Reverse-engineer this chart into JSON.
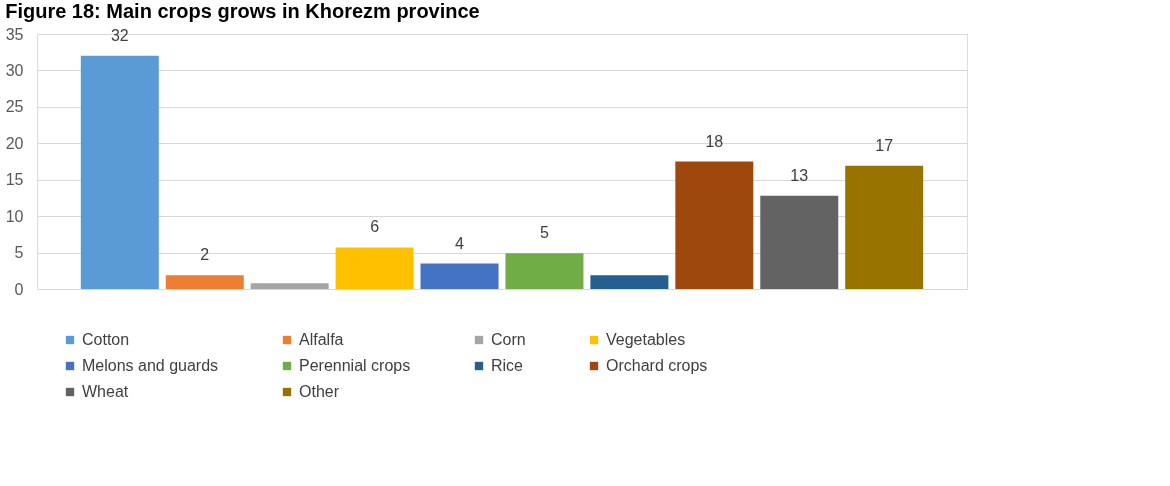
{
  "chart_data": {
    "type": "bar",
    "title": "Figure 18: Main crops grows in Khorezm province",
    "categories": [
      null,
      null,
      null,
      null,
      null,
      null,
      null,
      null,
      null,
      null
    ],
    "series": [
      {
        "name": "Cotton",
        "color": "#5b9bd5",
        "values": [
          32,
          null,
          null,
          null,
          null,
          null,
          null,
          null,
          null,
          null
        ],
        "value_labels": [
          "32",
          null,
          null,
          null,
          null,
          null,
          null,
          null,
          null,
          null
        ]
      },
      {
        "name": "Alfalfa",
        "color": "#ed7d31",
        "values": [
          null,
          1.9,
          null,
          null,
          null,
          null,
          null,
          null,
          null,
          null
        ],
        "value_labels": [
          null,
          "2",
          null,
          null,
          null,
          null,
          null,
          null,
          null,
          null
        ]
      },
      {
        "name": "Corn",
        "color": "#a5a5a5",
        "values": [
          null,
          null,
          0.8,
          null,
          null,
          null,
          null,
          null,
          null,
          null
        ]
      },
      {
        "name": "Vegetables",
        "color": "#ffc000",
        "values": [
          null,
          null,
          null,
          5.7,
          null,
          null,
          null,
          null,
          null,
          null
        ],
        "value_labels": [
          null,
          null,
          null,
          "6",
          null,
          null,
          null,
          null,
          null,
          null
        ]
      },
      {
        "name": "Melons and guards",
        "color": "#4472c4",
        "values": [
          null,
          null,
          null,
          null,
          3.5,
          null,
          null,
          null,
          null,
          null
        ],
        "value_labels": [
          null,
          null,
          null,
          null,
          "4",
          null,
          null,
          null,
          null,
          null
        ]
      },
      {
        "name": "Perennial crops",
        "color": "#70ad47",
        "values": [
          null,
          null,
          null,
          null,
          null,
          4.9,
          null,
          null,
          null,
          null
        ],
        "value_labels": [
          null,
          null,
          null,
          null,
          null,
          "5",
          null,
          null,
          null,
          null
        ]
      },
      {
        "name": "Rice",
        "color": "#255e91",
        "values": [
          null,
          null,
          null,
          null,
          null,
          null,
          1.9,
          null,
          null,
          null
        ]
      },
      {
        "name": "Orchard crops",
        "color": "#9e480e",
        "values": [
          null,
          null,
          null,
          null,
          null,
          null,
          null,
          17.5,
          null,
          null
        ],
        "value_labels": [
          null,
          null,
          null,
          null,
          null,
          null,
          null,
          "18",
          null,
          null
        ]
      },
      {
        "name": "Wheat",
        "color": "#636363",
        "values": [
          null,
          null,
          null,
          null,
          null,
          null,
          null,
          null,
          12.8,
          null
        ],
        "value_labels": [
          null,
          null,
          null,
          null,
          null,
          null,
          null,
          null,
          "13",
          null
        ]
      },
      {
        "name": "Other",
        "color": "#997300",
        "values": [
          null,
          null,
          null,
          null,
          null,
          null,
          null,
          null,
          null,
          16.9
        ],
        "value_labels": [
          null,
          null,
          null,
          null,
          null,
          null,
          null,
          null,
          null,
          "17"
        ]
      }
    ],
    "ylim": [
      0,
      35
    ],
    "yticks": [
      0,
      5,
      10,
      15,
      20,
      25,
      30,
      35
    ],
    "grid": "y",
    "legend": "bottom",
    "tick_labels": "y"
  }
}
